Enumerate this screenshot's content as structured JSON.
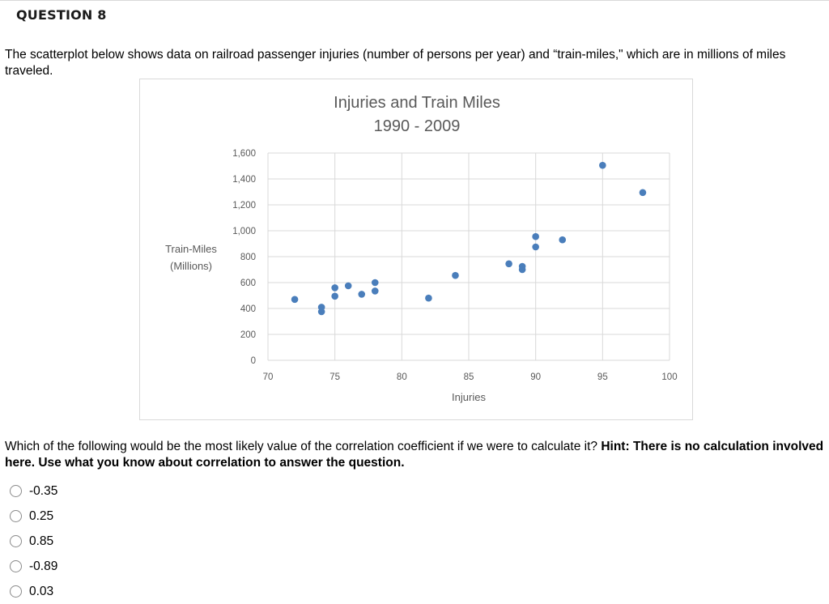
{
  "question": {
    "title": "QUESTION 8",
    "intro": "The scatterplot below shows data on railroad passenger injuries (number of persons per year) and “train-miles,\" which are in millions of miles traveled.",
    "prompt_plain": "Which of the following would be the most likely value of the correlation coefficient if we were to calculate it? ",
    "prompt_bold": "Hint: There is no calculation involved here. Use what you know about correlation to answer the question.",
    "options": [
      {
        "label": "-0.35",
        "selected": false
      },
      {
        "label": "0.25",
        "selected": false
      },
      {
        "label": "0.85",
        "selected": false
      },
      {
        "label": "-0.89",
        "selected": false
      },
      {
        "label": "0.03",
        "selected": false
      }
    ]
  },
  "colors": {
    "marker": "#4a7ebb",
    "grid": "#d9d9d9",
    "axis_text": "#595959",
    "title_text": "#595959"
  },
  "chart_data": {
    "type": "scatter",
    "title": "Injuries and Train Miles",
    "subtitle": "1990 - 2009",
    "xlabel": "Injuries",
    "ylabel": "Train-Miles (Millions)",
    "ylabel_lines": [
      "Train-Miles",
      "(Millions)"
    ],
    "xlim": [
      70,
      100
    ],
    "ylim": [
      0,
      1600
    ],
    "xticks": [
      70,
      75,
      80,
      85,
      90,
      95,
      100
    ],
    "yticks": [
      0,
      200,
      400,
      600,
      800,
      1000,
      1200,
      1400,
      1600
    ],
    "ytick_labels": [
      "0",
      "200",
      "400",
      "600",
      "800",
      "1,000",
      "1,200",
      "1,400",
      "1,600"
    ],
    "grid": true,
    "legend": null,
    "points": [
      {
        "x": 72,
        "y": 470
      },
      {
        "x": 74,
        "y": 410
      },
      {
        "x": 74,
        "y": 375
      },
      {
        "x": 75,
        "y": 560
      },
      {
        "x": 75,
        "y": 495
      },
      {
        "x": 76,
        "y": 575
      },
      {
        "x": 77,
        "y": 510
      },
      {
        "x": 78,
        "y": 600
      },
      {
        "x": 78,
        "y": 535
      },
      {
        "x": 82,
        "y": 480
      },
      {
        "x": 84,
        "y": 655
      },
      {
        "x": 88,
        "y": 745
      },
      {
        "x": 89,
        "y": 725
      },
      {
        "x": 89,
        "y": 700
      },
      {
        "x": 90,
        "y": 955
      },
      {
        "x": 90,
        "y": 875
      },
      {
        "x": 92,
        "y": 930
      },
      {
        "x": 95,
        "y": 1505
      },
      {
        "x": 98,
        "y": 1295
      }
    ]
  }
}
